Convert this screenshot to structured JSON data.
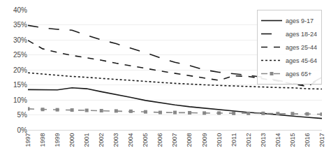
{
  "chart_data": {
    "type": "line",
    "x": [
      1997,
      1998,
      1999,
      2000,
      2001,
      2002,
      2003,
      2004,
      2005,
      2006,
      2007,
      2008,
      2009,
      2010,
      2011,
      2012,
      2013,
      2014,
      2015,
      2016,
      2017
    ],
    "xlim": [
      1997,
      2017
    ],
    "xticks": [
      1997,
      1998,
      1999,
      2000,
      2001,
      2002,
      2003,
      2004,
      2005,
      2006,
      2007,
      2008,
      2009,
      2010,
      2011,
      2012,
      2013,
      2014,
      2015,
      2016,
      2017
    ],
    "ylim": [
      0,
      0.4
    ],
    "yticks": [
      {
        "value": 0,
        "label": "0%"
      },
      {
        "value": 0.05,
        "label": "5%"
      },
      {
        "value": 0.1,
        "label": "10%"
      },
      {
        "value": 0.15,
        "label": "15%"
      },
      {
        "value": 0.2,
        "label": "20%"
      },
      {
        "value": 0.25,
        "label": "25%"
      },
      {
        "value": 0.3,
        "label": "30%"
      },
      {
        "value": 0.35,
        "label": "35%"
      },
      {
        "value": 0.4,
        "label": "40%"
      }
    ],
    "grid": true,
    "legend": "upper right",
    "series": [
      {
        "name": "ages 9-17",
        "color": "#1a1a1a",
        "line_style": "solid",
        "values": [
          0.134,
          0.133,
          0.133,
          0.14,
          0.137,
          0.127,
          0.118,
          0.108,
          0.098,
          0.09,
          0.083,
          0.077,
          0.072,
          0.068,
          0.063,
          0.058,
          0.055,
          0.05,
          0.046,
          0.042,
          0.038
        ]
      },
      {
        "name": "ages 18-24",
        "color": "#1a1a1a",
        "line_style": "longdash",
        "values": [
          0.348,
          0.34,
          0.335,
          0.332,
          0.315,
          0.3,
          0.287,
          0.272,
          0.257,
          0.24,
          0.225,
          0.214,
          0.2,
          0.192,
          0.187,
          0.182,
          0.175,
          0.165,
          0.155,
          0.148,
          0.175
        ]
      },
      {
        "name": "ages 25-44",
        "color": "#1a1a1a",
        "line_style": "dash",
        "values": [
          0.298,
          0.27,
          0.258,
          0.248,
          0.24,
          0.232,
          0.222,
          0.214,
          0.205,
          0.196,
          0.188,
          0.18,
          0.173,
          0.165,
          0.18,
          0.178,
          0.17,
          0.163,
          0.153,
          0.145,
          0.172
        ]
      },
      {
        "name": "ages 45-64",
        "color": "#1a1a1a",
        "line_style": "dot",
        "values": [
          0.19,
          0.186,
          0.181,
          0.178,
          0.175,
          0.171,
          0.168,
          0.165,
          0.161,
          0.158,
          0.155,
          0.152,
          0.15,
          0.148,
          0.146,
          0.144,
          0.142,
          0.141,
          0.14,
          0.137,
          0.136
        ]
      },
      {
        "name": "ages 65+",
        "color": "#888888",
        "line_style": "dash",
        "marker": "square",
        "values": [
          0.07,
          0.068,
          0.067,
          0.066,
          0.065,
          0.064,
          0.063,
          0.062,
          0.06,
          0.058,
          0.058,
          0.057,
          0.056,
          0.056,
          0.055,
          0.055,
          0.055,
          0.054,
          0.054,
          0.053,
          0.052
        ]
      }
    ]
  }
}
